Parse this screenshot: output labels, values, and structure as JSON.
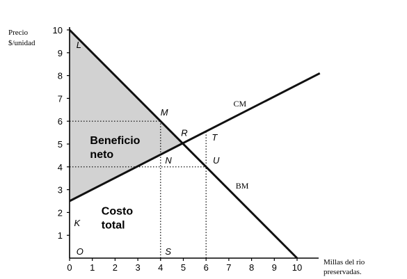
{
  "chart_data": {
    "type": "line",
    "ylabel_lines": [
      "Precio",
      "$/unidad"
    ],
    "xlabel_lines": [
      "Millas del rio",
      "preservadas."
    ],
    "xlim": [
      0,
      10
    ],
    "ylim": [
      0,
      10
    ],
    "xticks": [
      0,
      1,
      2,
      3,
      4,
      5,
      6,
      7,
      8,
      9,
      10
    ],
    "yticks": [
      1,
      2,
      3,
      4,
      5,
      6,
      7,
      8,
      9,
      10
    ],
    "series": [
      {
        "name": "CM",
        "x": [
          0,
          11
        ],
        "y": [
          2.5,
          8.1
        ]
      },
      {
        "name": "BM",
        "x": [
          0,
          10
        ],
        "y": [
          10,
          0
        ]
      }
    ],
    "guides": [
      {
        "from": [
          0,
          6
        ],
        "to": [
          4,
          6
        ]
      },
      {
        "from": [
          4,
          0
        ],
        "to": [
          4,
          6
        ]
      },
      {
        "from": [
          0,
          4
        ],
        "to": [
          6,
          4
        ]
      },
      {
        "from": [
          6,
          0
        ],
        "to": [
          6,
          5.5
        ]
      }
    ],
    "shaded_region": [
      [
        0,
        10
      ],
      [
        5,
        5
      ],
      [
        0,
        2.5
      ]
    ],
    "point_labels": [
      {
        "label": "L",
        "x": 0.3,
        "y": 9.2
      },
      {
        "label": "M",
        "x": 4.0,
        "y": 6.25
      },
      {
        "label": "R",
        "x": 4.9,
        "y": 5.35
      },
      {
        "label": "T",
        "x": 6.25,
        "y": 5.15
      },
      {
        "label": "N",
        "x": 4.2,
        "y": 4.15
      },
      {
        "label": "U",
        "x": 6.3,
        "y": 4.15
      },
      {
        "label": "K",
        "x": 0.2,
        "y": 1.4
      },
      {
        "label": "O",
        "x": 0.3,
        "y": 0.15
      },
      {
        "label": "S",
        "x": 4.2,
        "y": 0.15
      }
    ],
    "region_labels": [
      {
        "lines": [
          "Beneficio",
          "neto"
        ],
        "x": 0.9,
        "y": 5.0
      },
      {
        "lines": [
          "Costo",
          "total"
        ],
        "x": 1.4,
        "y": 1.9
      }
    ]
  }
}
